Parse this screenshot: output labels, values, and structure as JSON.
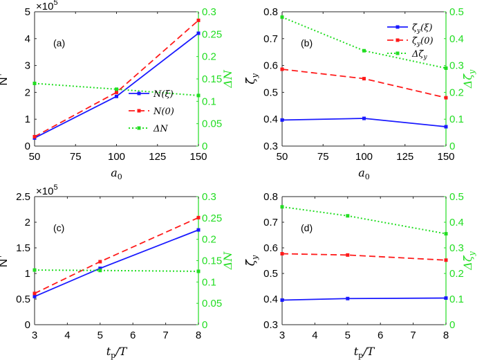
{
  "figure": {
    "right_axis_color": "#22dd22"
  },
  "chart_data": [
    {
      "type": "line",
      "panel_tag": "(a)",
      "multiplier": "×10",
      "multiplier_exp": "5",
      "xlabel": "a",
      "xlabel_sub": "0",
      "ylabel_left": "N",
      "ylabel_left_sup": "+",
      "ylabel_right": "ΔN",
      "x": [
        50,
        100,
        150
      ],
      "xlim": [
        50,
        150
      ],
      "x_ticks": [
        50,
        75,
        100,
        125,
        150
      ],
      "ylim_left": [
        0,
        5
      ],
      "y_ticks_left": [
        "0",
        "1",
        "2",
        "3",
        "4",
        "5"
      ],
      "ylim_right": [
        0,
        0.3
      ],
      "y_ticks_right": [
        "0",
        "0.05",
        "0.1",
        "0.15",
        "0.2",
        "0.25",
        "0.3"
      ],
      "legend": {
        "position": "lower-right"
      },
      "series": [
        {
          "name": "N(ξ)",
          "axis": "left",
          "color": "#1a1aff",
          "style": "solid",
          "values": [
            0.3,
            1.85,
            4.2
          ]
        },
        {
          "name": "N(0)",
          "axis": "left",
          "color": "#ff1a1a",
          "style": "dashed",
          "values": [
            0.35,
            2.0,
            4.68
          ]
        },
        {
          "name": "ΔN",
          "axis": "right",
          "color": "#22dd22",
          "style": "dotted",
          "values": [
            0.14,
            0.127,
            0.113
          ]
        }
      ]
    },
    {
      "type": "line",
      "panel_tag": "(b)",
      "xlabel": "a",
      "xlabel_sub": "0",
      "ylabel_left": "ζ̄",
      "ylabel_left_sub": "y",
      "ylabel_right": "Δζ̄",
      "ylabel_right_sub": "y",
      "x": [
        50,
        100,
        150
      ],
      "xlim": [
        50,
        150
      ],
      "x_ticks": [
        50,
        75,
        100,
        125,
        150
      ],
      "ylim_left": [
        0.3,
        0.8
      ],
      "y_ticks_left": [
        "0.3",
        "0.4",
        "0.5",
        "0.6",
        "0.7",
        "0.8"
      ],
      "ylim_right": [
        0,
        0.5
      ],
      "y_ticks_right": [
        "0",
        "0.1",
        "0.2",
        "0.3",
        "0.4",
        "0.5"
      ],
      "legend": {
        "position": "upper-right"
      },
      "series": [
        {
          "name": "ζ̄",
          "name_sub": "y",
          "name_arg": "(ξ)",
          "axis": "left",
          "color": "#1a1aff",
          "style": "solid",
          "values": [
            0.397,
            0.403,
            0.372
          ]
        },
        {
          "name": "ζ̄",
          "name_sub": "y",
          "name_arg": "(0)",
          "axis": "left",
          "color": "#ff1a1a",
          "style": "dashed",
          "values": [
            0.586,
            0.551,
            0.48
          ]
        },
        {
          "name": "Δζ̄",
          "name_sub": "y",
          "name_arg": "",
          "axis": "right",
          "color": "#22dd22",
          "style": "dotted",
          "values": [
            0.48,
            0.355,
            0.29
          ]
        }
      ]
    },
    {
      "type": "line",
      "panel_tag": "(c)",
      "multiplier": "×10",
      "multiplier_exp": "5",
      "xlabel": "t",
      "xlabel_sub": "p",
      "xlabel_tail": "/T",
      "ylabel_left": "N",
      "ylabel_left_sup": "+",
      "ylabel_right": "ΔN",
      "x": [
        3,
        5,
        8
      ],
      "xlim": [
        3,
        8
      ],
      "x_ticks": [
        3,
        4,
        5,
        6,
        7,
        8
      ],
      "ylim_left": [
        0,
        2.5
      ],
      "y_ticks_left": [
        "0",
        "0.5",
        "1",
        "1.5",
        "2",
        "2.5"
      ],
      "ylim_right": [
        0,
        0.3
      ],
      "y_ticks_right": [
        "0",
        "0.05",
        "0.1",
        "0.15",
        "0.2",
        "0.25",
        "0.3"
      ],
      "series": [
        {
          "name": "N(ξ)",
          "axis": "left",
          "color": "#1a1aff",
          "style": "solid",
          "values": [
            0.55,
            1.1,
            1.85
          ]
        },
        {
          "name": "N(0)",
          "axis": "left",
          "color": "#ff1a1a",
          "style": "dashed",
          "values": [
            0.61,
            1.23,
            2.09
          ]
        },
        {
          "name": "ΔN",
          "axis": "right",
          "color": "#22dd22",
          "style": "dotted",
          "values": [
            0.128,
            0.127,
            0.125
          ]
        }
      ]
    },
    {
      "type": "line",
      "panel_tag": "(d)",
      "xlabel": "t",
      "xlabel_sub": "p",
      "xlabel_tail": "/T",
      "ylabel_left": "ζ̄",
      "ylabel_left_sub": "y",
      "ylabel_right": "Δζ̄",
      "ylabel_right_sub": "y",
      "x": [
        3,
        5,
        8
      ],
      "xlim": [
        3,
        8
      ],
      "x_ticks": [
        3,
        4,
        5,
        6,
        7,
        8
      ],
      "ylim_left": [
        0.3,
        0.8
      ],
      "y_ticks_left": [
        "0.3",
        "0.4",
        "0.5",
        "0.6",
        "0.7",
        "0.8"
      ],
      "ylim_right": [
        0,
        0.5
      ],
      "y_ticks_right": [
        "0",
        "0.1",
        "0.2",
        "0.3",
        "0.4",
        "0.5"
      ],
      "series": [
        {
          "name": "ζ̄",
          "name_sub": "y",
          "name_arg": "(ξ)",
          "axis": "left",
          "color": "#1a1aff",
          "style": "solid",
          "values": [
            0.396,
            0.402,
            0.404
          ]
        },
        {
          "name": "ζ̄",
          "name_sub": "y",
          "name_arg": "(0)",
          "axis": "left",
          "color": "#ff1a1a",
          "style": "dashed",
          "values": [
            0.577,
            0.572,
            0.552
          ]
        },
        {
          "name": "Δζ̄",
          "name_sub": "y",
          "name_arg": "",
          "axis": "right",
          "color": "#22dd22",
          "style": "dotted",
          "values": [
            0.46,
            0.425,
            0.355
          ]
        }
      ]
    }
  ]
}
